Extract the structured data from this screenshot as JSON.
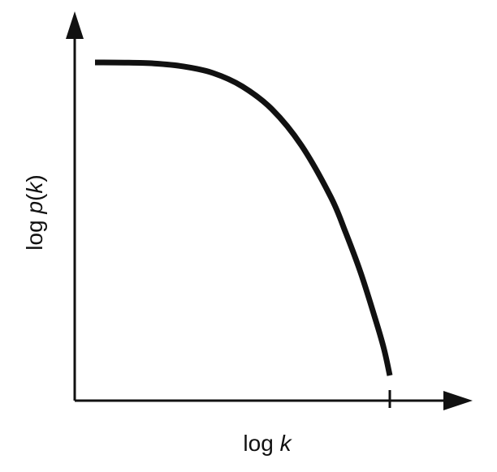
{
  "chart_data": {
    "type": "line",
    "xlabel": {
      "prefix": "log ",
      "variable": "k"
    },
    "ylabel": {
      "prefix": "log ",
      "function": "p",
      "open": "(",
      "variable": "k",
      "close": ")"
    },
    "axes": {
      "x_arrow": true,
      "y_arrow": true,
      "x_cutoff_tick": true,
      "tick_labels": false
    },
    "series": [
      {
        "values_normalized": [
          [
            0.0,
            1.0
          ],
          [
            0.1,
            0.9995
          ],
          [
            0.2,
            0.9968
          ],
          [
            0.3,
            0.9874
          ],
          [
            0.4,
            0.9664
          ],
          [
            0.5,
            0.9232
          ],
          [
            0.6,
            0.8507
          ],
          [
            0.7,
            0.7353
          ],
          [
            0.8,
            0.5699
          ],
          [
            0.85,
            0.4571
          ],
          [
            0.9,
            0.3316
          ],
          [
            0.95,
            0.1833
          ],
          [
            0.98,
            0.086
          ],
          [
            1.0,
            0.0
          ]
        ]
      }
    ],
    "colors": {
      "line": "#111111",
      "axes": "#111111",
      "background": "#ffffff"
    },
    "grid": false,
    "legend": "none"
  }
}
